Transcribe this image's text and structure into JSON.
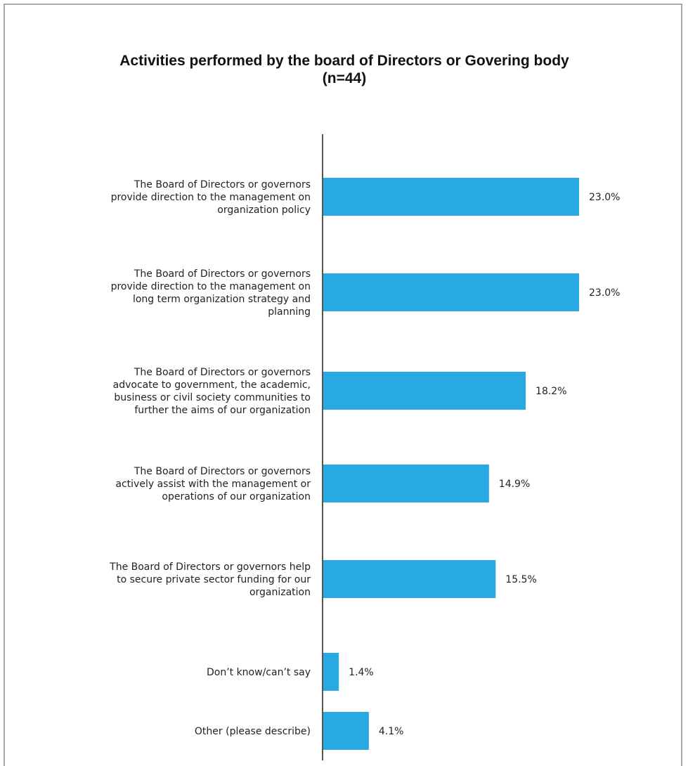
{
  "chart_data": {
    "type": "bar",
    "orientation": "horizontal",
    "title": "Activities performed by the board of Directors or Govering body",
    "subtitle": "(n=44)",
    "categories": [
      "The Board of Directors or governors provide direction to the management on organization policy",
      "The Board of Directors or governors provide direction to the management on long term organization strategy and planning",
      "The Board of Directors or governors advocate to government, the academic, business or civil society communities to further the aims of our organization",
      "The Board of Directors or governors actively assist with the management or operations of our organization",
      "The Board of Directors or governors help to secure private sector funding for our organization",
      "Don’t know/can’t say",
      "Other (please describe)"
    ],
    "category_lines": [
      [
        "The Board of Directors or governors",
        "provide direction to the management on",
        "organization policy"
      ],
      [
        "The Board of Directors or governors",
        "provide direction to the management on",
        "long term organization strategy and",
        "planning"
      ],
      [
        "The Board of Directors or governors",
        "advocate to government, the academic,",
        "business or civil society communities to",
        "further the aims of our organization"
      ],
      [
        "The Board of Directors or governors",
        "actively assist with the management or",
        "operations of our organization"
      ],
      [
        "The Board of Directors or governors help",
        "to secure private sector funding for our",
        "organization"
      ],
      [
        "Don’t know/can’t say"
      ],
      [
        "Other (please describe)"
      ]
    ],
    "values": [
      23.0,
      23.0,
      18.2,
      14.9,
      15.5,
      1.4,
      4.1
    ],
    "value_labels": [
      "23.0%",
      "23.0%",
      "18.2%",
      "14.9%",
      "15.5%",
      "1.4%",
      "4.1%"
    ],
    "xlim": [
      0,
      25
    ],
    "grid": false,
    "legend": "none",
    "bar_color": "#29a9e1",
    "axis_color": "#555555"
  }
}
